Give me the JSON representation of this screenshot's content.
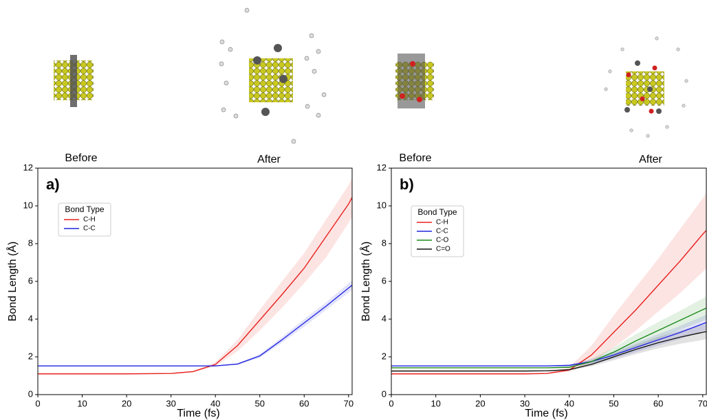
{
  "chart_data": [
    {
      "type": "line",
      "panel_label": "a)",
      "before_label": "Before",
      "after_label": "After",
      "xlabel": "Time (fs)",
      "ylabel": "Bond Length (Å)",
      "legend_title": "Bond Type",
      "xlim": [
        0,
        70.8
      ],
      "ylim": [
        0,
        12
      ],
      "xticks": [
        0,
        10,
        20,
        30,
        40,
        50,
        60,
        70
      ],
      "yticks": [
        0,
        2,
        4,
        6,
        8,
        10,
        12
      ],
      "x": [
        0,
        10,
        20,
        30,
        35,
        40,
        45,
        50,
        55,
        60,
        65,
        70,
        70.8
      ],
      "series": [
        {
          "name": "C-H",
          "color": "#e8201c",
          "values": [
            1.1,
            1.1,
            1.1,
            1.12,
            1.22,
            1.6,
            2.6,
            3.95,
            5.3,
            6.7,
            8.4,
            10.1,
            10.45
          ],
          "lower": [
            1.08,
            1.08,
            1.08,
            1.1,
            1.18,
            1.5,
            2.3,
            3.4,
            4.6,
            5.9,
            7.3,
            9.1,
            9.4
          ],
          "upper": [
            1.12,
            1.12,
            1.12,
            1.14,
            1.26,
            1.72,
            2.9,
            4.5,
            6.0,
            7.5,
            9.3,
            11.1,
            11.5
          ]
        },
        {
          "name": "C-C",
          "color": "#1f24e0",
          "values": [
            1.52,
            1.52,
            1.52,
            1.52,
            1.52,
            1.52,
            1.62,
            2.05,
            2.9,
            3.8,
            4.7,
            5.65,
            5.8
          ],
          "lower": [
            1.5,
            1.5,
            1.5,
            1.5,
            1.5,
            1.5,
            1.58,
            1.95,
            2.75,
            3.6,
            4.5,
            5.4,
            5.55
          ],
          "upper": [
            1.54,
            1.54,
            1.54,
            1.54,
            1.54,
            1.54,
            1.66,
            2.15,
            3.05,
            4.0,
            4.9,
            5.9,
            6.05
          ]
        }
      ]
    },
    {
      "type": "line",
      "panel_label": "b)",
      "before_label": "Before",
      "after_label": "After",
      "xlabel": "Time (fs)",
      "ylabel": "Bond Length (Å)",
      "legend_title": "Bond Type",
      "xlim": [
        0,
        70.8
      ],
      "ylim": [
        0,
        12
      ],
      "xticks": [
        0,
        10,
        20,
        30,
        40,
        50,
        60,
        70
      ],
      "yticks": [
        0,
        2,
        4,
        6,
        8,
        10,
        12
      ],
      "x": [
        0,
        10,
        20,
        30,
        35,
        40,
        45,
        50,
        55,
        60,
        65,
        70,
        70.8
      ],
      "series": [
        {
          "name": "C-H",
          "color": "#e8201c",
          "values": [
            1.1,
            1.1,
            1.1,
            1.1,
            1.12,
            1.3,
            2.1,
            3.3,
            4.5,
            5.8,
            7.1,
            8.5,
            8.7
          ],
          "lower": [
            1.08,
            1.08,
            1.08,
            1.08,
            1.1,
            1.2,
            1.7,
            2.5,
            3.4,
            4.4,
            5.4,
            6.5,
            6.7
          ],
          "upper": [
            1.12,
            1.12,
            1.12,
            1.12,
            1.16,
            1.45,
            2.6,
            4.2,
            5.7,
            7.2,
            8.8,
            10.4,
            10.7
          ]
        },
        {
          "name": "C-C",
          "color": "#1f24e0",
          "values": [
            1.52,
            1.52,
            1.52,
            1.52,
            1.52,
            1.55,
            1.75,
            2.1,
            2.5,
            2.9,
            3.3,
            3.75,
            3.82
          ],
          "lower": [
            1.5,
            1.5,
            1.5,
            1.5,
            1.5,
            1.5,
            1.62,
            1.9,
            2.25,
            2.6,
            2.95,
            3.35,
            3.4
          ],
          "upper": [
            1.54,
            1.54,
            1.54,
            1.54,
            1.54,
            1.6,
            1.88,
            2.3,
            2.75,
            3.2,
            3.65,
            4.15,
            4.25
          ]
        },
        {
          "name": "C-O",
          "color": "#1a8a1a",
          "values": [
            1.42,
            1.42,
            1.42,
            1.42,
            1.42,
            1.45,
            1.75,
            2.25,
            2.85,
            3.4,
            3.95,
            4.5,
            4.58
          ],
          "lower": [
            1.4,
            1.4,
            1.4,
            1.4,
            1.4,
            1.41,
            1.6,
            2.0,
            2.5,
            2.95,
            3.45,
            3.9,
            3.98
          ],
          "upper": [
            1.44,
            1.44,
            1.44,
            1.44,
            1.44,
            1.5,
            1.9,
            2.5,
            3.2,
            3.85,
            4.45,
            5.1,
            5.2
          ]
        },
        {
          "name": "C=O",
          "color": "#111111",
          "values": [
            1.25,
            1.25,
            1.25,
            1.25,
            1.26,
            1.32,
            1.6,
            2.0,
            2.4,
            2.75,
            3.05,
            3.3,
            3.34
          ],
          "lower": [
            1.23,
            1.23,
            1.23,
            1.23,
            1.24,
            1.28,
            1.5,
            1.82,
            2.15,
            2.45,
            2.7,
            2.9,
            2.94
          ],
          "upper": [
            1.27,
            1.27,
            1.27,
            1.27,
            1.28,
            1.36,
            1.7,
            2.18,
            2.65,
            3.05,
            3.4,
            3.7,
            3.74
          ]
        }
      ]
    }
  ]
}
